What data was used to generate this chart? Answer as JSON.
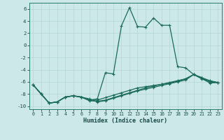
{
  "xlabel": "Humidex (Indice chaleur)",
  "background_color": "#cce8e8",
  "grid_color": "#b8d8d8",
  "line_color": "#1a6b5a",
  "xlim": [
    -0.5,
    23.5
  ],
  "ylim": [
    -10.5,
    7.0
  ],
  "xticks": [
    0,
    1,
    2,
    3,
    4,
    5,
    6,
    7,
    8,
    9,
    10,
    11,
    12,
    13,
    14,
    15,
    16,
    17,
    18,
    19,
    20,
    21,
    22,
    23
  ],
  "yticks": [
    -10,
    -8,
    -6,
    -4,
    -2,
    0,
    2,
    4,
    6
  ],
  "line1_x": [
    0,
    1,
    2,
    3,
    4,
    5,
    6,
    7,
    8,
    9,
    10,
    11,
    12,
    13,
    14,
    15,
    16,
    17,
    18,
    19,
    20,
    21,
    22,
    23
  ],
  "line1_y": [
    -6.5,
    -8.0,
    -9.5,
    -9.3,
    -8.5,
    -8.3,
    -8.5,
    -9.0,
    -8.8,
    -4.5,
    -4.7,
    3.2,
    6.2,
    3.1,
    3.0,
    4.5,
    3.3,
    3.3,
    -3.5,
    -3.7,
    -4.8,
    -5.3,
    -6.2,
    -6.1
  ],
  "line2_x": [
    0,
    1,
    2,
    3,
    4,
    5,
    6,
    7,
    8,
    9,
    10,
    11,
    12,
    13,
    14,
    15,
    16,
    17,
    18,
    19,
    20,
    21,
    22,
    23
  ],
  "line2_y": [
    -6.5,
    -8.0,
    -9.5,
    -9.3,
    -8.5,
    -8.3,
    -8.5,
    -9.0,
    -9.0,
    -8.6,
    -8.2,
    -7.8,
    -7.4,
    -7.0,
    -6.8,
    -6.6,
    -6.4,
    -6.2,
    -5.9,
    -5.5,
    -4.8,
    -5.5,
    -6.1,
    -6.1
  ],
  "line3_x": [
    0,
    1,
    2,
    3,
    4,
    5,
    6,
    7,
    8,
    9,
    10,
    11,
    12,
    13,
    14,
    15,
    16,
    17,
    18,
    19,
    20,
    21,
    22,
    23
  ],
  "line3_y": [
    -6.5,
    -8.0,
    -9.5,
    -9.3,
    -8.5,
    -8.3,
    -8.5,
    -8.8,
    -9.3,
    -9.1,
    -8.7,
    -8.3,
    -7.9,
    -7.5,
    -7.2,
    -6.9,
    -6.6,
    -6.3,
    -6.0,
    -5.7,
    -4.8,
    -5.4,
    -5.9,
    -6.1
  ],
  "line4_x": [
    0,
    1,
    2,
    3,
    4,
    5,
    6,
    7,
    8,
    9,
    10,
    11,
    12,
    13,
    14,
    15,
    16,
    17,
    18,
    19,
    20,
    21,
    22,
    23
  ],
  "line4_y": [
    -6.5,
    -8.0,
    -9.5,
    -9.3,
    -8.5,
    -8.3,
    -8.5,
    -9.1,
    -9.2,
    -9.0,
    -8.6,
    -8.2,
    -7.8,
    -7.4,
    -7.0,
    -6.7,
    -6.4,
    -6.1,
    -5.8,
    -5.5,
    -4.8,
    -5.3,
    -5.8,
    -6.1
  ]
}
